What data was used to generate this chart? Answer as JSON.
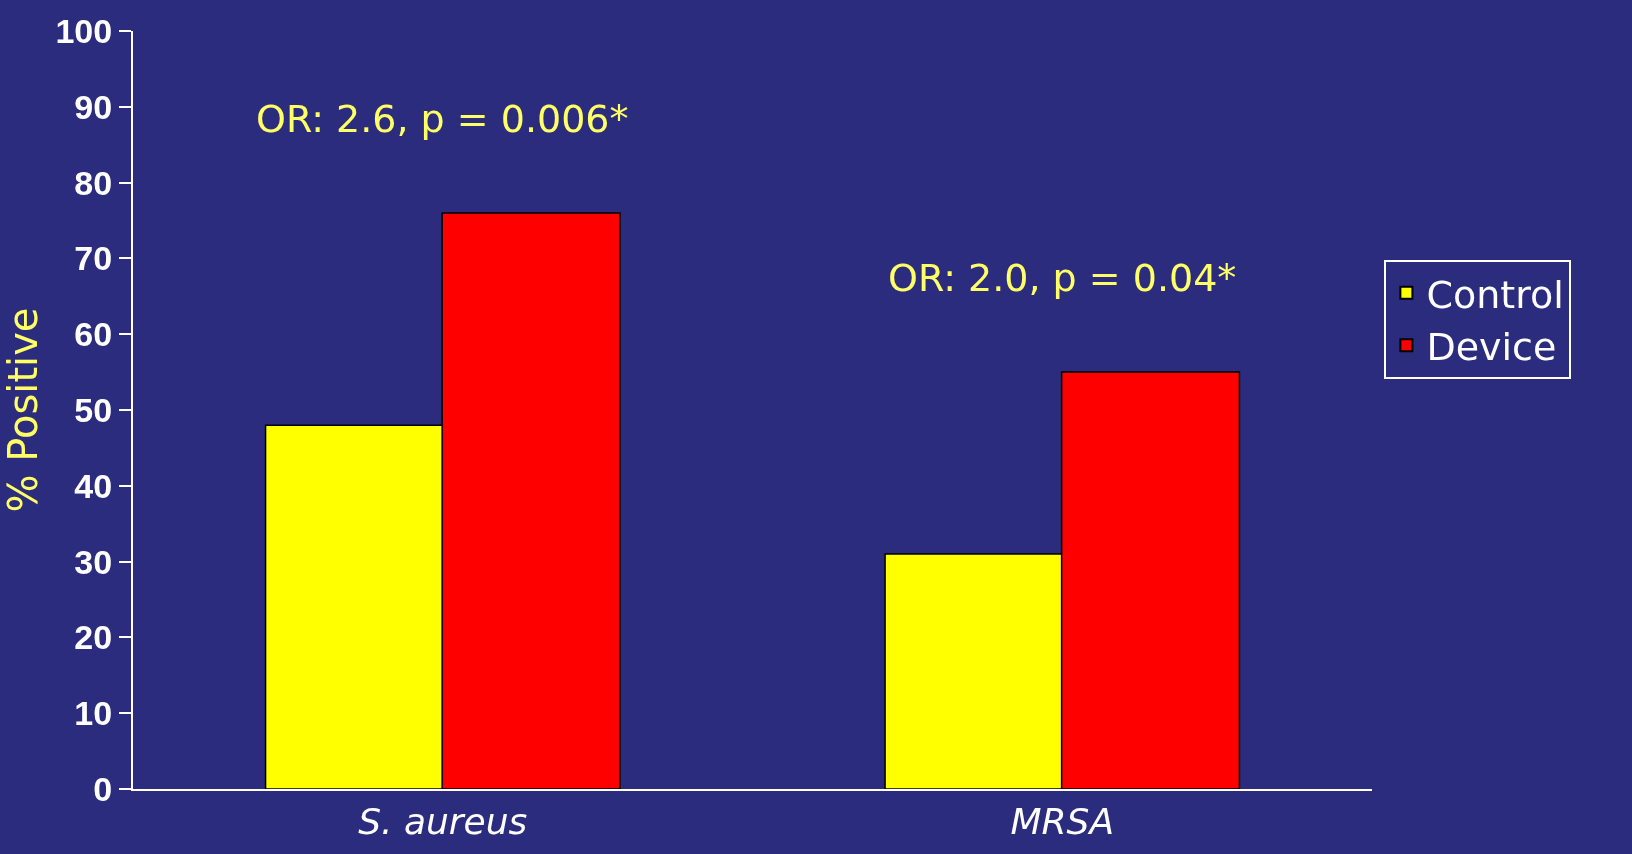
{
  "chart_data": {
    "type": "bar",
    "ylabel": "% Positive",
    "categories": [
      "S. aureus",
      "MRSA"
    ],
    "series": [
      {
        "name": "Control",
        "color": "#ffff00",
        "values": [
          48,
          31
        ]
      },
      {
        "name": "Device",
        "color": "#ff0000",
        "values": [
          76,
          55
        ]
      }
    ],
    "ylim": [
      0,
      100
    ],
    "yticks": [
      0,
      10,
      20,
      30,
      40,
      50,
      60,
      70,
      80,
      90,
      100
    ],
    "grid": false,
    "legend": "right",
    "annotations": [
      "OR: 2.6, p = 0.006*",
      "OR: 2.0, p = 0.04*"
    ]
  }
}
